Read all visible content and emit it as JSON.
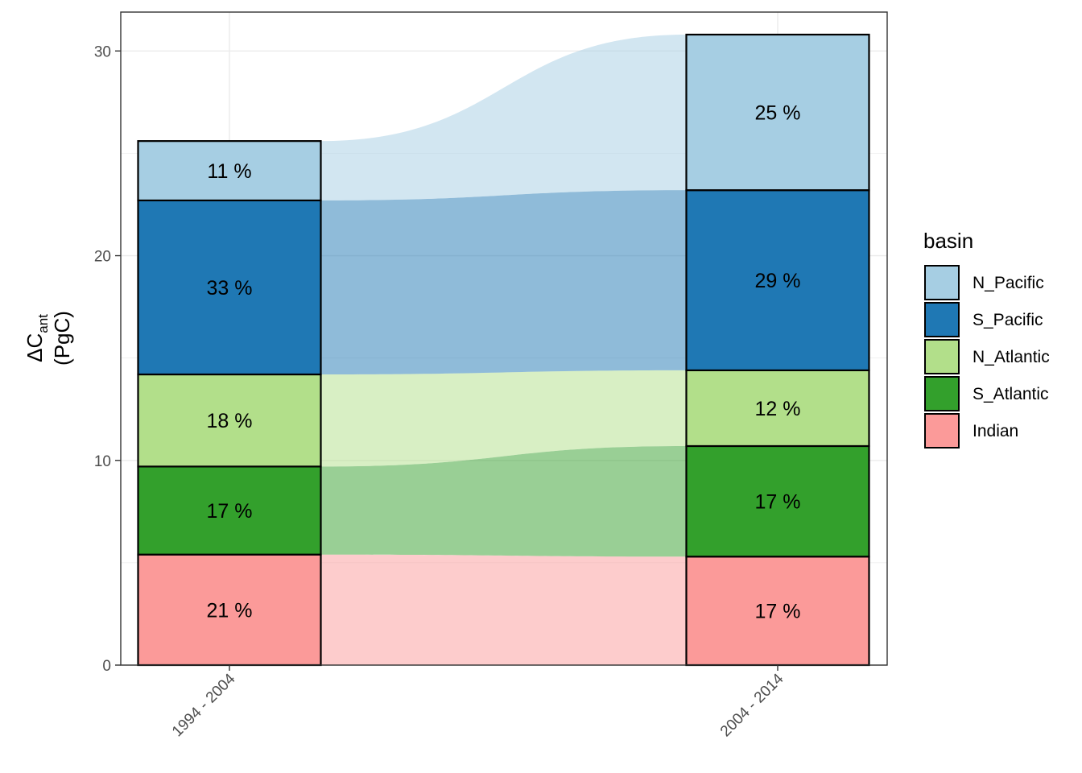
{
  "chart_data": {
    "type": "bar",
    "stacked": true,
    "connected_areas": true,
    "categories": [
      "1994 - 2004",
      "2004 - 2014"
    ],
    "ylabel_symbol": "ΔC",
    "ylabel_subscript": "ant",
    "ylabel_unit": "(PgC)",
    "xlabel": "",
    "ylim": [
      0,
      31.9
    ],
    "yticks": [
      0,
      10,
      20,
      30
    ],
    "grid": true,
    "legend_title": "basin",
    "legend_position": "right",
    "series": [
      {
        "name": "Indian",
        "color": "#fb9a99",
        "values": [
          5.4,
          5.3
        ],
        "labels": [
          "21 %",
          "17 %"
        ]
      },
      {
        "name": "S_Atlantic",
        "color": "#33a02c",
        "values": [
          4.3,
          5.4
        ],
        "labels": [
          "17 %",
          "17 %"
        ]
      },
      {
        "name": "N_Atlantic",
        "color": "#b2df8a",
        "values": [
          4.5,
          3.7
        ],
        "labels": [
          "18 %",
          "12 %"
        ]
      },
      {
        "name": "S_Pacific",
        "color": "#1f78b4",
        "values": [
          8.5,
          8.8
        ],
        "labels": [
          "33 %",
          "29 %"
        ]
      },
      {
        "name": "N_Pacific",
        "color": "#a6cee3",
        "values": [
          2.9,
          7.6
        ],
        "labels": [
          "11 %",
          "25 %"
        ]
      }
    ]
  }
}
